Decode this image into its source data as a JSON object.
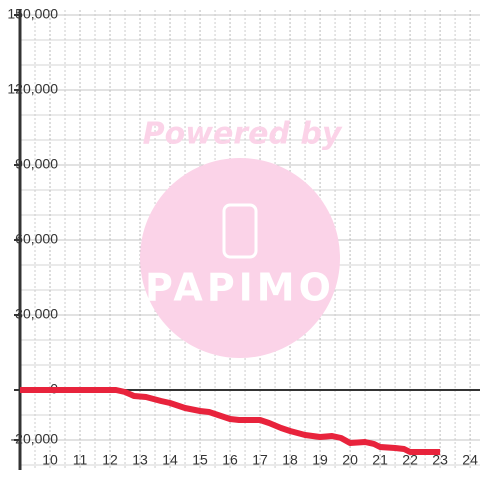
{
  "watermark": {
    "text": "Powered by",
    "logo": "PAPIMO"
  },
  "chart_data": {
    "type": "line",
    "series": [
      {
        "color": "#e8233c",
        "x": [
          9,
          12.2,
          12.5,
          12.8,
          13.2,
          13.7,
          14,
          14.5,
          15,
          15.3,
          15.7,
          16,
          16.3,
          17,
          17.3,
          17.7,
          18,
          18.5,
          19,
          19.4,
          19.7,
          20,
          20.5,
          20.8,
          21,
          21.5,
          21.8,
          22,
          23
        ],
        "values": [
          0,
          0,
          -800,
          -2400,
          -2800,
          -4400,
          -5200,
          -7200,
          -8400,
          -8800,
          -10400,
          -11600,
          -12000,
          -12000,
          -13200,
          -15200,
          -16400,
          -18000,
          -18800,
          -18400,
          -19200,
          -21200,
          -20800,
          -21600,
          -22800,
          -23200,
          -23600,
          -24800,
          -24800
        ]
      }
    ],
    "xlim": [
      9,
      24.33
    ],
    "xticks": [
      10,
      11,
      12,
      13,
      14,
      15,
      16,
      17,
      18,
      19,
      20,
      21,
      22,
      23,
      24
    ],
    "x_minor_ticks": [
      9.5,
      10.5,
      11.5,
      12.5,
      13.5,
      14.5,
      15.5,
      16.5,
      17.5,
      18.5,
      19.5,
      20.5,
      21.5,
      22.5,
      23.5
    ],
    "ylim": [
      -32000,
      152000
    ],
    "yticks": [
      {
        "value": -20000,
        "label": "-20,000"
      },
      0,
      {
        "value": 30000,
        "label": "30,000"
      },
      {
        "value": 60000,
        "label": "60,000"
      },
      {
        "value": 90000,
        "label": "90,000"
      },
      {
        "value": 120000,
        "label": "120,000"
      },
      {
        "value": 150000,
        "label": "150,000"
      }
    ],
    "y_minor_ticks": [
      -30000,
      -10000,
      10000,
      20000,
      40000,
      50000,
      70000,
      80000,
      100000,
      110000,
      130000,
      140000
    ],
    "grid": true
  }
}
